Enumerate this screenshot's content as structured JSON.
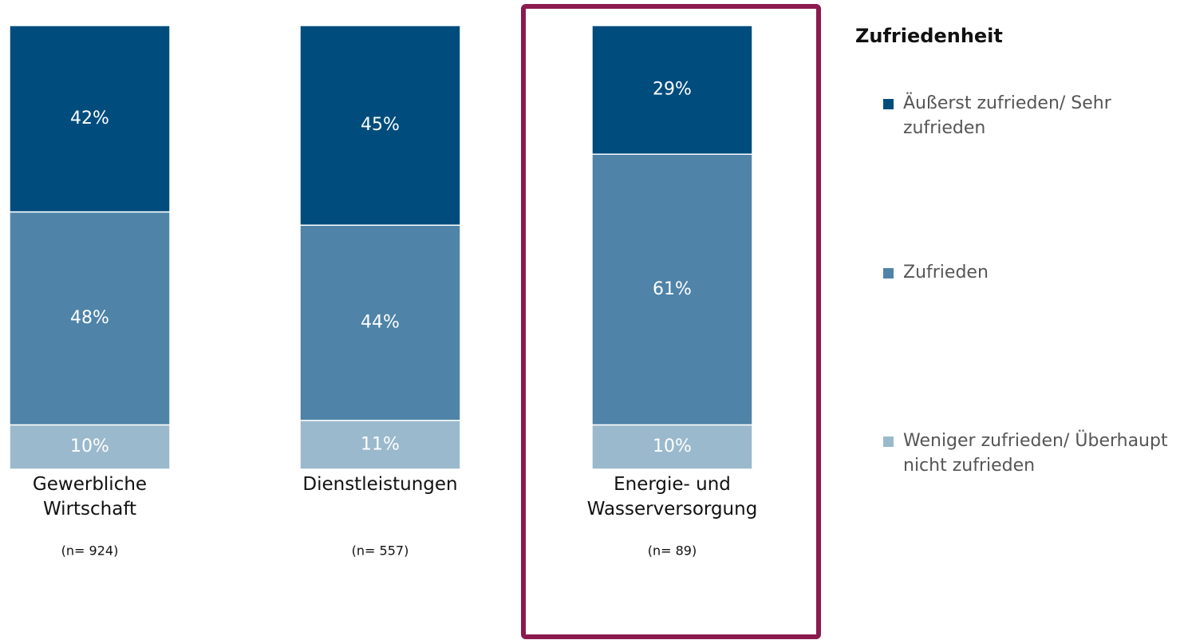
{
  "chart_data": {
    "type": "bar",
    "stacked": true,
    "categories": [
      "Gewerbliche Wirtschaft",
      "Dienstleistungen",
      "Energie- und Wasserversorgung"
    ],
    "annotations": [
      "(n= 924)",
      "(n= 557)",
      "(n= 89)"
    ],
    "legend_title": "Zufriedenheit",
    "highlight": 2,
    "highlight_color": "#8b1a4f",
    "series": [
      {
        "name": "Weniger zufrieden/ Überhaupt nicht zufrieden",
        "color": "#9bb9cc",
        "values": [
          10,
          11,
          10
        ],
        "value_labels": [
          "10%",
          "11%",
          "10%"
        ]
      },
      {
        "name": "Zufrieden",
        "color": "#4f83a8",
        "values": [
          48,
          44,
          61
        ],
        "value_labels": [
          "48%",
          "44%",
          "61%"
        ]
      },
      {
        "name": "Äußerst zufrieden/ Sehr zufrieden",
        "color": "#004c7d",
        "values": [
          42,
          45,
          29
        ],
        "value_labels": [
          "42%",
          "45%",
          "29%"
        ]
      }
    ]
  }
}
